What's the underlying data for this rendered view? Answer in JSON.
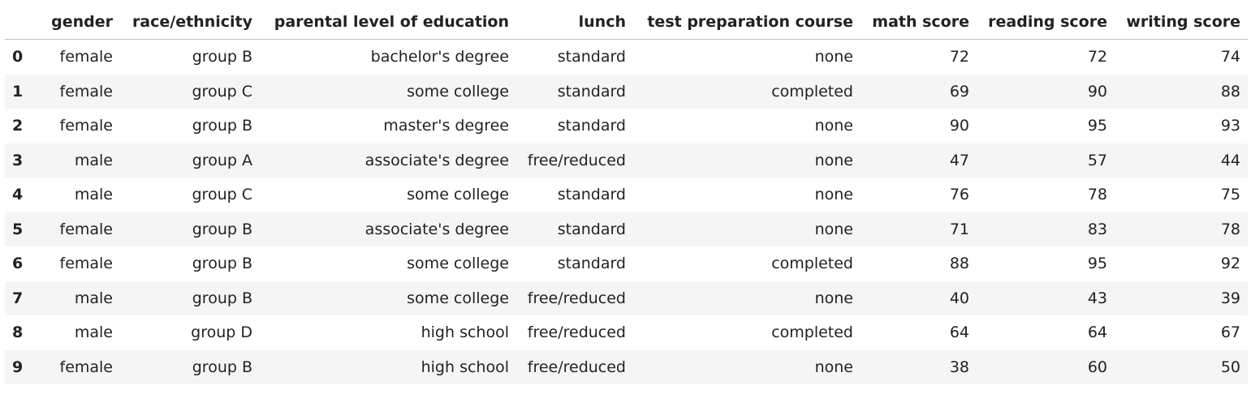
{
  "table": {
    "columns": [
      "",
      "gender",
      "race/ethnicity",
      "parental level of education",
      "lunch",
      "test preparation course",
      "math score",
      "reading score",
      "writing score"
    ],
    "rows": [
      [
        "0",
        "female",
        "group B",
        "bachelor's degree",
        "standard",
        "none",
        "72",
        "72",
        "74"
      ],
      [
        "1",
        "female",
        "group C",
        "some college",
        "standard",
        "completed",
        "69",
        "90",
        "88"
      ],
      [
        "2",
        "female",
        "group B",
        "master's degree",
        "standard",
        "none",
        "90",
        "95",
        "93"
      ],
      [
        "3",
        "male",
        "group A",
        "associate's degree",
        "free/reduced",
        "none",
        "47",
        "57",
        "44"
      ],
      [
        "4",
        "male",
        "group C",
        "some college",
        "standard",
        "none",
        "76",
        "78",
        "75"
      ],
      [
        "5",
        "female",
        "group B",
        "associate's degree",
        "standard",
        "none",
        "71",
        "83",
        "78"
      ],
      [
        "6",
        "female",
        "group B",
        "some college",
        "standard",
        "completed",
        "88",
        "95",
        "92"
      ],
      [
        "7",
        "male",
        "group B",
        "some college",
        "free/reduced",
        "none",
        "40",
        "43",
        "39"
      ],
      [
        "8",
        "male",
        "group D",
        "high school",
        "free/reduced",
        "completed",
        "64",
        "64",
        "67"
      ],
      [
        "9",
        "female",
        "group B",
        "high school",
        "free/reduced",
        "none",
        "38",
        "60",
        "50"
      ]
    ]
  },
  "colors": {
    "text": "#222222",
    "stripe": "#f5f5f5",
    "header_rule": "#bdbdbd",
    "background": "#ffffff"
  }
}
